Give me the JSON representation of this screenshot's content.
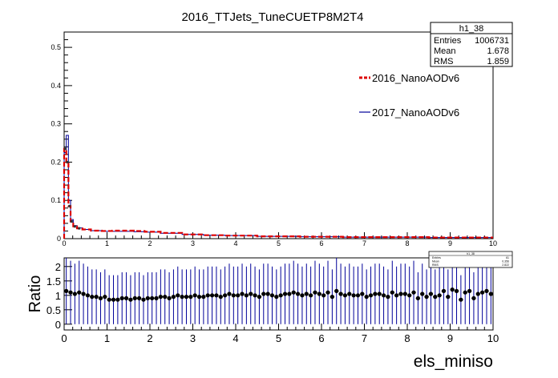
{
  "title": "2016_TTJets_TuneCUETP8M2T4",
  "stats_box": {
    "name": "h1_38",
    "rows": [
      {
        "label": "Entries",
        "value": "1006731"
      },
      {
        "label": "Mean",
        "value": "1.678"
      },
      {
        "label": "RMS",
        "value": "1.859"
      }
    ]
  },
  "ratio_stats_box": {
    "name": "h1_38",
    "rows": [
      {
        "label": "Entries",
        "value": "61"
      },
      {
        "label": "Mean",
        "value": "0.356"
      },
      {
        "label": "RMS",
        "value": "2.822"
      }
    ]
  },
  "colors": {
    "series_2016": "#dd0000",
    "series_2017": "#000099",
    "ratio": "#000000",
    "ratio_err": "#000099"
  },
  "chart_data": [
    {
      "type": "line",
      "title": "2016_TTJets_TuneCUETP8M2T4",
      "xlabel": "",
      "ylabel": "",
      "xlim": [
        0,
        10
      ],
      "ylim": [
        0,
        0.54
      ],
      "xticks": [
        "0",
        "1",
        "2",
        "3",
        "4",
        "5",
        "6",
        "7",
        "8",
        "9",
        "10"
      ],
      "yticks": [
        "0",
        "0.1",
        "0.2",
        "0.3",
        "0.4",
        "0.5"
      ],
      "legend": "top-right",
      "grid": false,
      "series": [
        {
          "name": "2016_NanoAODv6",
          "x": [
            0.025,
            0.075,
            0.125,
            0.175,
            0.25,
            0.35,
            0.5,
            0.75,
            1.0,
            1.25,
            1.5,
            1.75,
            2.0,
            2.5,
            3.0,
            3.5,
            4.0,
            5.0,
            6.0,
            7.0,
            8.0,
            9.0,
            9.9
          ],
          "values": [
            0.235,
            0.2,
            0.085,
            0.045,
            0.032,
            0.027,
            0.024,
            0.021,
            0.02,
            0.021,
            0.021,
            0.02,
            0.018,
            0.015,
            0.011,
            0.009,
            0.008,
            0.006,
            0.005,
            0.004,
            0.004,
            0.003,
            0.003
          ]
        },
        {
          "name": "2017_NanoAODv6",
          "x": [
            0.025,
            0.075,
            0.125,
            0.175,
            0.25,
            0.35,
            0.5,
            0.75,
            1.0,
            1.25,
            1.5,
            1.75,
            2.0,
            2.5,
            3.0,
            3.5,
            4.0,
            5.0,
            6.0,
            7.0,
            8.0,
            9.0,
            9.9
          ],
          "values": [
            0.225,
            0.27,
            0.1,
            0.05,
            0.034,
            0.028,
            0.024,
            0.021,
            0.019,
            0.019,
            0.019,
            0.018,
            0.017,
            0.014,
            0.011,
            0.009,
            0.008,
            0.006,
            0.005,
            0.004,
            0.004,
            0.003,
            0.003
          ]
        }
      ]
    },
    {
      "type": "scatter",
      "title": "",
      "xlabel": "els_miniso",
      "ylabel": "Ratio",
      "xlim": [
        0,
        10
      ],
      "ylim": [
        -0.2,
        2.3
      ],
      "xticks": [
        "0",
        "1",
        "2",
        "3",
        "4",
        "5",
        "6",
        "7",
        "8",
        "9",
        "10"
      ],
      "yticks": [
        "0",
        "0.5",
        "1",
        "1.5",
        "2"
      ],
      "grid": false,
      "series": [
        {
          "name": "",
          "x": [
            0.05,
            0.15,
            0.25,
            0.35,
            0.45,
            0.55,
            0.65,
            0.75,
            0.85,
            0.95,
            1.05,
            1.15,
            1.25,
            1.35,
            1.45,
            1.55,
            1.65,
            1.75,
            1.85,
            1.95,
            2.05,
            2.15,
            2.25,
            2.35,
            2.45,
            2.55,
            2.65,
            2.75,
            2.85,
            2.95,
            3.05,
            3.15,
            3.25,
            3.35,
            3.45,
            3.55,
            3.65,
            3.75,
            3.85,
            3.95,
            4.05,
            4.15,
            4.25,
            4.35,
            4.45,
            4.55,
            4.65,
            4.75,
            4.85,
            4.95,
            5.05,
            5.15,
            5.25,
            5.35,
            5.45,
            5.55,
            5.65,
            5.75,
            5.85,
            5.95,
            6.05,
            6.15,
            6.25,
            6.35,
            6.45,
            6.55,
            6.65,
            6.75,
            6.85,
            6.95,
            7.05,
            7.15,
            7.25,
            7.35,
            7.45,
            7.55,
            7.65,
            7.75,
            7.85,
            7.95,
            8.05,
            8.15,
            8.25,
            8.35,
            8.45,
            8.55,
            8.65,
            8.75,
            8.85,
            8.95,
            9.05,
            9.15,
            9.25,
            9.35,
            9.45,
            9.55,
            9.65,
            9.75,
            9.85,
            9.95
          ],
          "values": [
            1.15,
            1.1,
            1.05,
            1.1,
            1.05,
            1.0,
            0.95,
            0.95,
            0.9,
            0.95,
            0.85,
            0.85,
            0.85,
            0.9,
            0.9,
            0.85,
            0.9,
            0.9,
            0.85,
            0.9,
            0.9,
            0.9,
            0.95,
            0.95,
            0.9,
            0.95,
            1.0,
            0.95,
            0.95,
            0.95,
            1.0,
            0.95,
            0.95,
            1.0,
            1.0,
            1.0,
            0.95,
            1.0,
            1.05,
            1.0,
            1.0,
            1.05,
            1.0,
            1.05,
            1.0,
            0.95,
            1.05,
            1.05,
            1.0,
            0.95,
            1.0,
            1.05,
            1.05,
            1.1,
            1.05,
            1.0,
            1.05,
            1.0,
            1.1,
            1.05,
            1.0,
            1.1,
            0.95,
            1.15,
            1.05,
            1.0,
            1.05,
            1.0,
            1.0,
            1.05,
            0.95,
            1.0,
            1.05,
            1.05,
            1.0,
            0.95,
            1.1,
            1.0,
            1.05,
            1.05,
            1.0,
            1.1,
            0.9,
            1.05,
            0.95,
            1.05,
            0.95,
            1.0,
            1.15,
            0.95,
            1.2,
            1.15,
            0.85,
            1.1,
            1.15,
            0.9,
            1.05,
            1.1,
            1.15,
            1.05
          ],
          "errors": [
            1.15,
            1.1,
            1.05,
            1.1,
            1.05,
            1.0,
            0.95,
            0.95,
            0.9,
            0.95,
            0.85,
            0.85,
            0.85,
            0.9,
            0.9,
            0.85,
            0.9,
            0.9,
            0.85,
            0.9,
            0.9,
            0.9,
            0.95,
            0.95,
            0.9,
            0.95,
            1.0,
            0.95,
            0.95,
            0.95,
            1.0,
            0.95,
            0.95,
            1.0,
            1.0,
            1.0,
            0.95,
            1.0,
            1.05,
            1.0,
            1.0,
            1.05,
            1.0,
            1.05,
            1.0,
            0.95,
            1.05,
            1.05,
            1.0,
            0.95,
            1.0,
            1.05,
            1.05,
            1.1,
            1.05,
            1.0,
            1.05,
            1.0,
            1.1,
            1.05,
            1.0,
            1.1,
            0.95,
            1.15,
            1.05,
            1.0,
            1.05,
            1.0,
            1.0,
            1.05,
            0.95,
            1.0,
            1.05,
            1.05,
            1.0,
            0.95,
            1.1,
            1.0,
            1.05,
            1.05,
            1.0,
            1.1,
            0.9,
            1.05,
            0.95,
            1.05,
            0.95,
            1.0,
            1.15,
            0.95,
            1.2,
            1.15,
            0.85,
            1.1,
            1.15,
            0.9,
            1.05,
            1.1,
            1.15,
            1.05
          ]
        }
      ]
    }
  ]
}
